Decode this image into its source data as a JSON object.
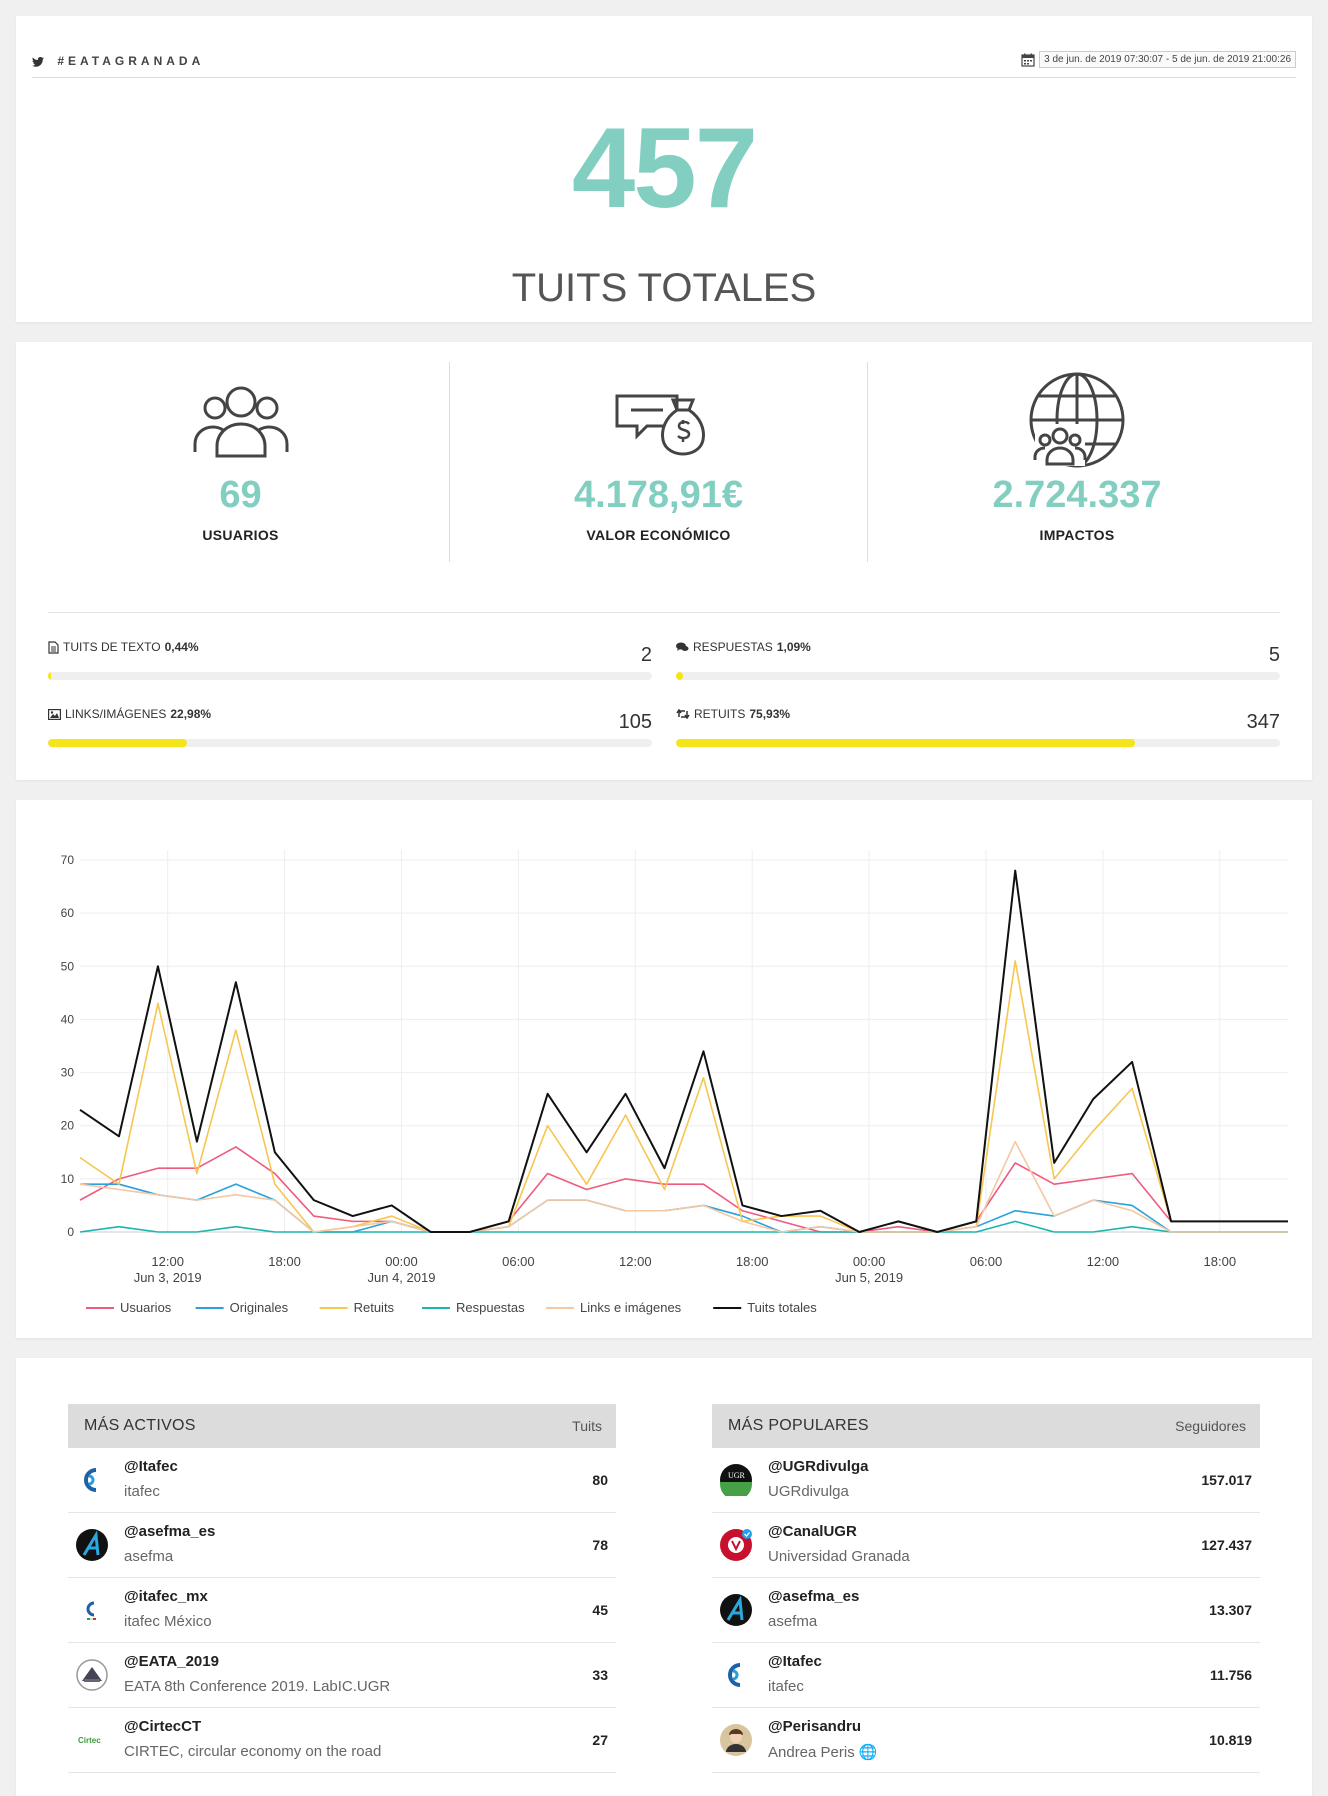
{
  "header": {
    "hashtag": "#EATAGRANADA",
    "date_range": "3 de jun. de 2019 07:30:07 - 5 de jun. de 2019 21:00:26"
  },
  "hero": {
    "total": "457",
    "label": "TUITS TOTALES"
  },
  "stats": [
    {
      "value": "69",
      "label": "USUARIOS",
      "icon": "users-icon"
    },
    {
      "value": "4.178,91€",
      "label": "VALOR ECONÓMICO",
      "icon": "money-bag-icon"
    },
    {
      "value": "2.724.337",
      "label": "IMPACTOS",
      "icon": "globe-users-icon"
    }
  ],
  "breakdown": [
    {
      "label": "TUITS DE TEXTO",
      "pct": "0,44%",
      "count": "2",
      "fill": 0.0044,
      "icon": "document-icon"
    },
    {
      "label": "RESPUESTAS",
      "pct": "1,09%",
      "count": "5",
      "fill": 0.0109,
      "icon": "comments-icon"
    },
    {
      "label": "LINKS/IMÁGENES",
      "pct": "22,98%",
      "count": "105",
      "fill": 0.2298,
      "icon": "image-icon"
    },
    {
      "label": "RETUITS",
      "pct": "75,93%",
      "count": "347",
      "fill": 0.7593,
      "icon": "retweet-icon"
    }
  ],
  "colors": {
    "accent": "#82cfc1",
    "bar": "#f5e418"
  },
  "chart_data": {
    "type": "line",
    "x_ticks": [
      {
        "t": 4.5,
        "line1": "12:00",
        "line2": "Jun 3, 2019"
      },
      {
        "t": 10.5,
        "line1": "18:00",
        "line2": ""
      },
      {
        "t": 16.5,
        "line1": "00:00",
        "line2": "Jun 4, 2019"
      },
      {
        "t": 22.5,
        "line1": "06:00",
        "line2": ""
      },
      {
        "t": 28.5,
        "line1": "12:00",
        "line2": ""
      },
      {
        "t": 34.5,
        "line1": "18:00",
        "line2": ""
      },
      {
        "t": 40.5,
        "line1": "00:00",
        "line2": "Jun 5, 2019"
      },
      {
        "t": 46.5,
        "line1": "06:00",
        "line2": ""
      },
      {
        "t": 52.5,
        "line1": "12:00",
        "line2": ""
      },
      {
        "t": 58.5,
        "line1": "18:00",
        "line2": ""
      }
    ],
    "x": [
      0,
      2,
      4,
      6,
      8,
      10,
      12,
      14,
      16,
      18,
      20,
      22,
      24,
      26,
      28,
      30,
      32,
      34,
      36,
      38,
      40,
      42,
      44,
      46,
      48,
      50,
      52,
      54,
      56,
      58,
      60,
      62
    ],
    "ylim": [
      0,
      70
    ],
    "yticks": [
      0,
      10,
      20,
      30,
      40,
      50,
      60,
      70
    ],
    "series": [
      {
        "name": "Usuarios",
        "color": "#ef5a7f",
        "values": [
          6,
          10,
          12,
          12,
          16,
          11,
          3,
          2,
          2,
          0,
          0,
          2,
          11,
          8,
          10,
          9,
          9,
          4,
          2,
          0,
          0,
          1,
          0,
          2,
          13,
          9,
          10,
          11,
          2,
          2,
          2,
          2
        ]
      },
      {
        "name": "Originales",
        "color": "#2aa0dc",
        "values": [
          9,
          9,
          7,
          6,
          9,
          6,
          0,
          0,
          2,
          0,
          0,
          1,
          6,
          6,
          4,
          4,
          5,
          3,
          0,
          1,
          0,
          0,
          0,
          1,
          4,
          3,
          6,
          5,
          0,
          0,
          0,
          0
        ]
      },
      {
        "name": "Retuits",
        "color": "#f7c64f",
        "values": [
          14,
          9,
          43,
          11,
          38,
          9,
          0,
          1,
          3,
          0,
          0,
          1,
          20,
          9,
          22,
          8,
          29,
          2,
          3,
          3,
          0,
          0,
          0,
          1,
          51,
          10,
          19,
          27,
          2,
          2,
          2,
          2
        ]
      },
      {
        "name": "Respuestas",
        "color": "#1ab5b0",
        "values": [
          0,
          1,
          0,
          0,
          1,
          0,
          0,
          0,
          0,
          0,
          0,
          0,
          0,
          0,
          0,
          0,
          0,
          0,
          0,
          0,
          0,
          0,
          0,
          0,
          2,
          0,
          0,
          1,
          0,
          0,
          0,
          0
        ]
      },
      {
        "name": "Links e imágenes",
        "color": "#f5c7a2",
        "values": [
          9,
          8,
          7,
          6,
          7,
          6,
          0,
          1,
          2,
          0,
          0,
          1,
          6,
          6,
          4,
          4,
          5,
          2,
          0,
          1,
          0,
          0,
          0,
          1,
          17,
          3,
          6,
          4,
          0,
          0,
          0,
          0
        ]
      },
      {
        "name": "Tuits totales",
        "color": "#111111",
        "values": [
          23,
          18,
          50,
          17,
          47,
          15,
          6,
          3,
          5,
          0,
          0,
          2,
          26,
          15,
          26,
          12,
          34,
          5,
          3,
          4,
          0,
          2,
          0,
          2,
          68,
          13,
          25,
          32,
          2,
          2,
          2,
          2
        ]
      }
    ]
  },
  "tables": {
    "active": {
      "title": "MÁS ACTIVOS",
      "col": "Tuits",
      "rows": [
        {
          "handle": "@Itafec",
          "name": "itafec",
          "value": "80",
          "avatar": "itafec-logo"
        },
        {
          "handle": "@asefma_es",
          "name": "asefma",
          "value": "78",
          "avatar": "asefma-logo"
        },
        {
          "handle": "@itafec_mx",
          "name": "itafec México",
          "value": "45",
          "avatar": "itafec-mx-logo"
        },
        {
          "handle": "@EATA_2019",
          "name": "EATA 8th Conference 2019. LabIC.UGR",
          "value": "33",
          "avatar": "eata-logo"
        },
        {
          "handle": "@CirtecCT",
          "name": "CIRTEC, circular economy on the road",
          "value": "27",
          "avatar": "cirtec-logo"
        }
      ]
    },
    "popular": {
      "title": "MÁS POPULARES",
      "col": "Seguidores",
      "rows": [
        {
          "handle": "@UGRdivulga",
          "name": "UGRdivulga",
          "value": "157.017",
          "avatar": "ugr-divulga-logo"
        },
        {
          "handle": "@CanalUGR",
          "name": "Universidad Granada",
          "value": "127.437",
          "avatar": "ugr-logo"
        },
        {
          "handle": "@asefma_es",
          "name": "asefma",
          "value": "13.307",
          "avatar": "asefma-logo"
        },
        {
          "handle": "@Itafec",
          "name": "itafec",
          "value": "11.756",
          "avatar": "itafec-logo"
        },
        {
          "handle": "@Perisandru",
          "name": "Andrea Peris 🌐",
          "value": "10.819",
          "avatar": "person-photo"
        }
      ]
    }
  }
}
